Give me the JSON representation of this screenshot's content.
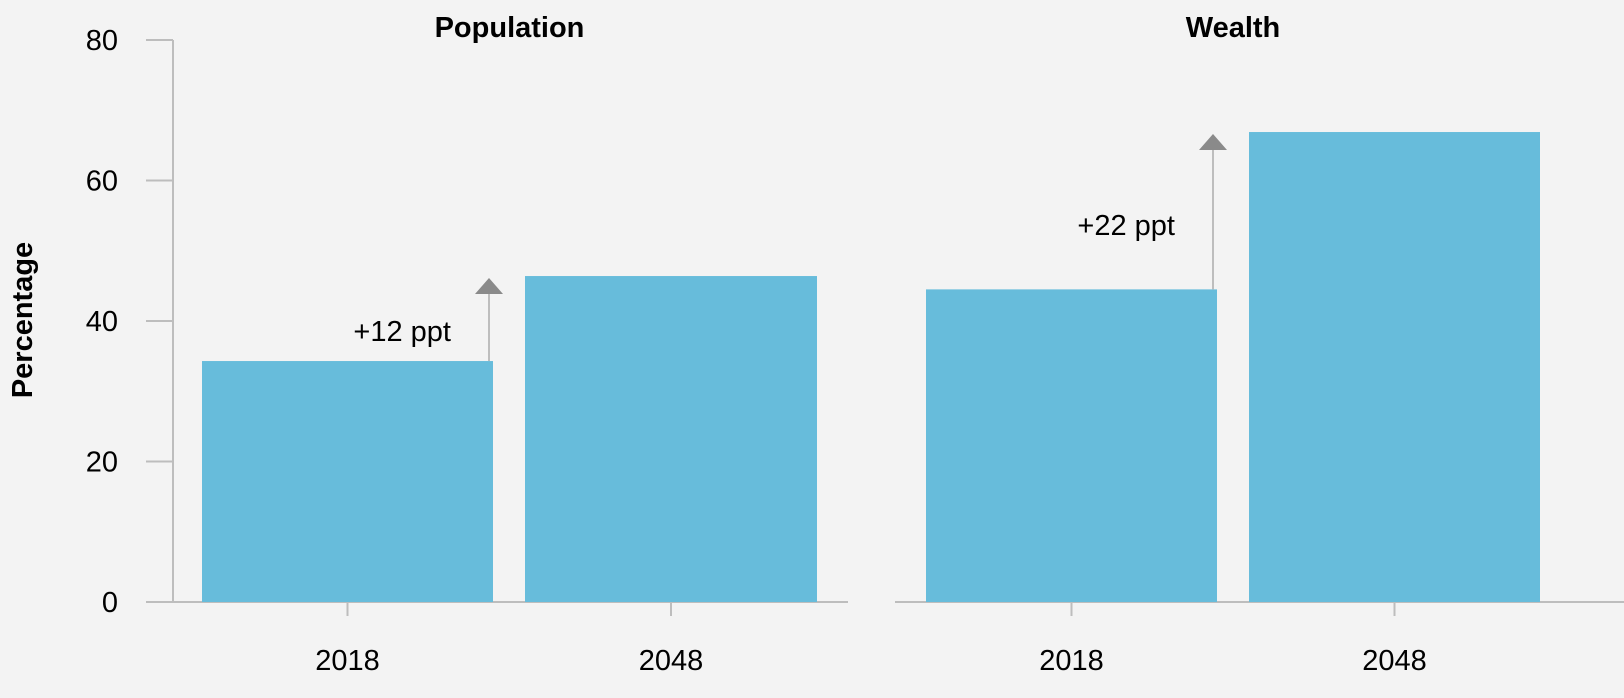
{
  "colors": {
    "background": "#f3f3f3",
    "bar": "#67bcdb",
    "axis": "#bdbdbd",
    "arrow": "#8a8a8a",
    "text": "#000000"
  },
  "chart_data": {
    "type": "bar",
    "ylabel": "Percentage",
    "ylim": [
      0,
      80
    ],
    "yticks": [
      0,
      20,
      40,
      60,
      80
    ],
    "grid": false,
    "legend": "none",
    "panels": [
      {
        "title": "Population",
        "categories": [
          "2018",
          "2048"
        ],
        "values": [
          34.3,
          46.4
        ],
        "annotation": "+12 ppt"
      },
      {
        "title": "Wealth",
        "categories": [
          "2018",
          "2048"
        ],
        "values": [
          44.5,
          66.9
        ],
        "annotation": "+22 ppt"
      }
    ]
  }
}
